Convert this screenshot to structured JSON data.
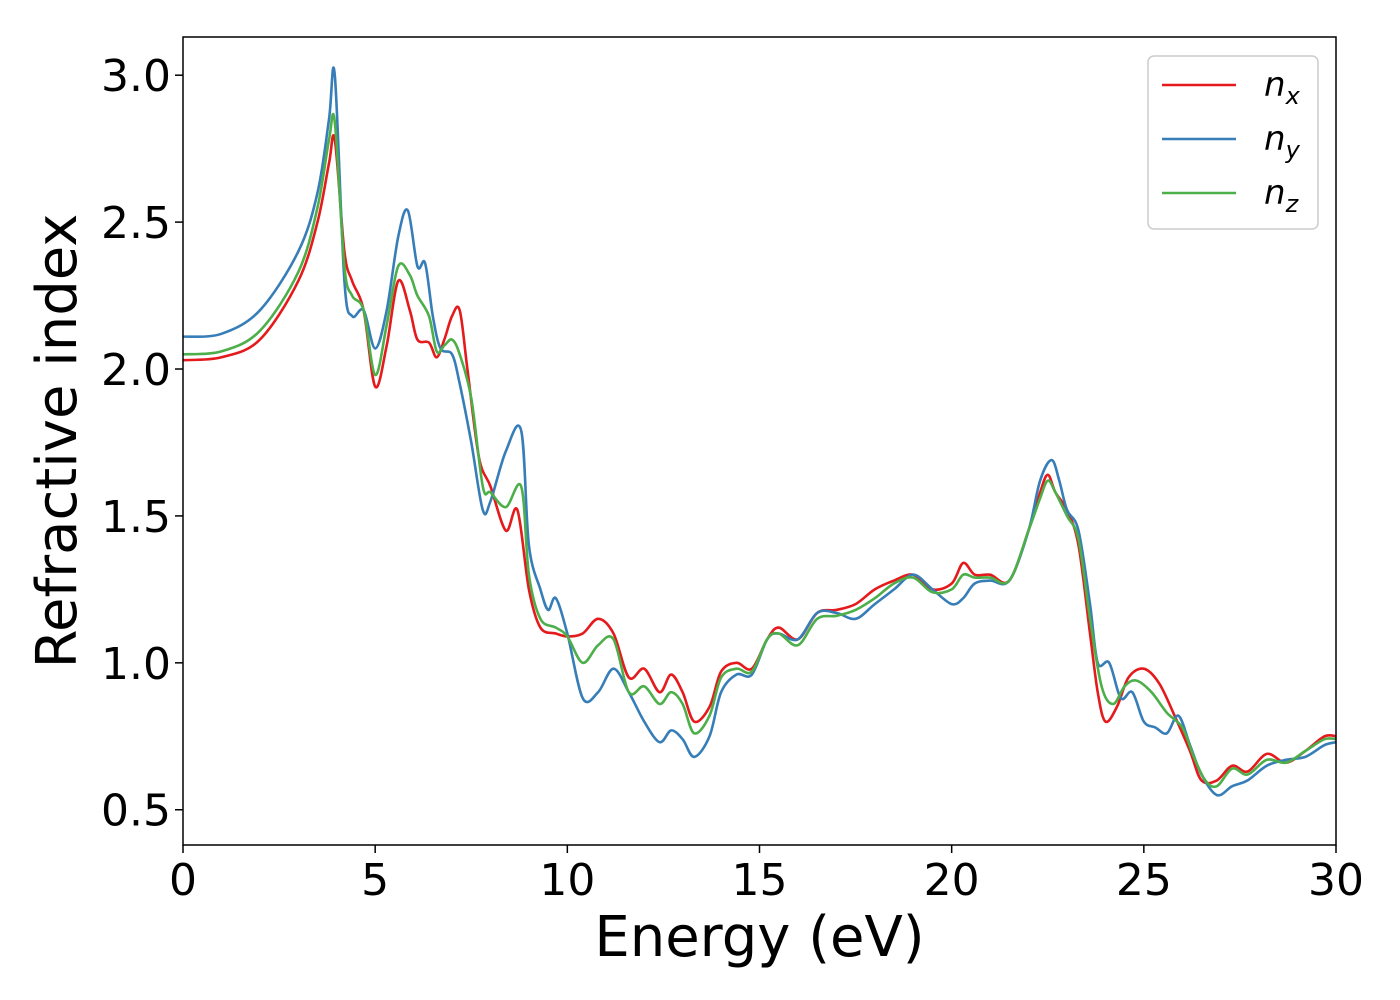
{
  "chart_data": {
    "type": "line",
    "xlabel": "Energy (eV)",
    "ylabel": "Refractive index",
    "xlim": [
      0,
      30
    ],
    "ylim": [
      0.38,
      3.13
    ],
    "xticks": [
      0,
      5,
      10,
      15,
      20,
      25,
      30
    ],
    "xtick_labels": [
      "0",
      "5",
      "10",
      "15",
      "20",
      "25",
      "30"
    ],
    "yticks": [
      0.5,
      1.0,
      1.5,
      2.0,
      2.5,
      3.0
    ],
    "ytick_labels": [
      "0.5",
      "1.0",
      "1.5",
      "2.0",
      "2.5",
      "3.0"
    ],
    "grid": false,
    "legend": {
      "position": "top-right"
    },
    "series": [
      {
        "name": "n_x",
        "label_base": "n",
        "label_sub": "x",
        "color": "#e41a1c",
        "x": [
          0,
          1,
          2,
          3,
          3.5,
          3.8,
          3.95,
          4.2,
          4.4,
          4.7,
          5.0,
          5.3,
          5.6,
          5.9,
          6.1,
          6.4,
          6.6,
          6.8,
          7.0,
          7.2,
          7.4,
          7.7,
          8.0,
          8.4,
          8.7,
          9.0,
          9.3,
          9.7,
          10,
          10.4,
          10.8,
          11.2,
          11.6,
          12,
          12.4,
          12.7,
          13,
          13.3,
          13.7,
          14,
          14.4,
          14.8,
          15.2,
          15.5,
          16,
          16.5,
          17,
          17.5,
          18,
          18.5,
          19,
          19.5,
          20,
          20.3,
          20.6,
          21,
          21.5,
          22,
          22.3,
          22.5,
          22.7,
          23,
          23.3,
          23.6,
          23.8,
          24,
          24.3,
          24.6,
          25,
          25.4,
          25.8,
          26.2,
          26.5,
          26.9,
          27.3,
          27.7,
          28.2,
          28.7,
          29.2,
          29.7,
          30
        ],
        "y": [
          2.03,
          2.04,
          2.1,
          2.3,
          2.5,
          2.7,
          2.78,
          2.4,
          2.3,
          2.2,
          1.94,
          2.08,
          2.3,
          2.2,
          2.1,
          2.09,
          2.04,
          2.1,
          2.18,
          2.2,
          2.0,
          1.7,
          1.6,
          1.45,
          1.52,
          1.25,
          1.12,
          1.1,
          1.09,
          1.1,
          1.15,
          1.1,
          0.95,
          0.98,
          0.9,
          0.96,
          0.9,
          0.8,
          0.85,
          0.97,
          1.0,
          0.98,
          1.08,
          1.12,
          1.08,
          1.17,
          1.18,
          1.2,
          1.25,
          1.28,
          1.3,
          1.25,
          1.27,
          1.34,
          1.3,
          1.3,
          1.28,
          1.45,
          1.58,
          1.64,
          1.58,
          1.52,
          1.4,
          1.1,
          0.9,
          0.8,
          0.85,
          0.95,
          0.98,
          0.93,
          0.82,
          0.7,
          0.6,
          0.6,
          0.65,
          0.63,
          0.69,
          0.66,
          0.7,
          0.75,
          0.75
        ]
      },
      {
        "name": "n_y",
        "label_base": "n",
        "label_sub": "y",
        "color": "#377eb8",
        "x": [
          0,
          1,
          2,
          3,
          3.5,
          3.8,
          3.95,
          4.2,
          4.4,
          4.7,
          5.0,
          5.3,
          5.6,
          5.85,
          6.1,
          6.3,
          6.5,
          6.7,
          7.0,
          7.2,
          7.5,
          7.8,
          8.0,
          8.4,
          8.8,
          9.0,
          9.3,
          9.5,
          9.7,
          10,
          10.4,
          10.8,
          11.2,
          11.6,
          12,
          12.4,
          12.7,
          13,
          13.3,
          13.7,
          14,
          14.4,
          14.8,
          15.2,
          15.5,
          16,
          16.5,
          17,
          17.5,
          18,
          18.5,
          19,
          19.5,
          20,
          20.3,
          20.6,
          21,
          21.5,
          22,
          22.3,
          22.6,
          22.8,
          23,
          23.3,
          23.6,
          23.8,
          24.1,
          24.4,
          24.7,
          25,
          25.3,
          25.6,
          25.9,
          26.2,
          26.5,
          26.9,
          27.3,
          27.7,
          28.2,
          28.7,
          29.2,
          29.7,
          30
        ],
        "y": [
          2.11,
          2.12,
          2.2,
          2.4,
          2.6,
          2.85,
          3.0,
          2.3,
          2.18,
          2.2,
          2.07,
          2.2,
          2.45,
          2.54,
          2.35,
          2.36,
          2.18,
          2.07,
          2.05,
          1.95,
          1.75,
          1.52,
          1.55,
          1.72,
          1.79,
          1.4,
          1.25,
          1.18,
          1.22,
          1.1,
          0.88,
          0.9,
          0.98,
          0.9,
          0.8,
          0.73,
          0.77,
          0.74,
          0.68,
          0.75,
          0.9,
          0.96,
          0.96,
          1.08,
          1.1,
          1.08,
          1.17,
          1.17,
          1.15,
          1.2,
          1.25,
          1.3,
          1.25,
          1.2,
          1.22,
          1.27,
          1.28,
          1.28,
          1.45,
          1.62,
          1.69,
          1.62,
          1.52,
          1.45,
          1.2,
          1.0,
          1.0,
          0.88,
          0.9,
          0.8,
          0.78,
          0.76,
          0.82,
          0.72,
          0.62,
          0.55,
          0.58,
          0.6,
          0.65,
          0.67,
          0.68,
          0.72,
          0.73
        ]
      },
      {
        "name": "n_z",
        "label_base": "n",
        "label_sub": "z",
        "color": "#4daf4a",
        "x": [
          0,
          1,
          2,
          3,
          3.5,
          3.8,
          3.95,
          4.2,
          4.4,
          4.7,
          5.0,
          5.3,
          5.6,
          5.9,
          6.1,
          6.4,
          6.6,
          6.8,
          7.0,
          7.2,
          7.5,
          7.8,
          8.0,
          8.4,
          8.8,
          9.0,
          9.3,
          9.7,
          10,
          10.4,
          10.8,
          11.2,
          11.6,
          12,
          12.4,
          12.7,
          13,
          13.3,
          13.7,
          14,
          14.4,
          14.8,
          15.2,
          15.5,
          16,
          16.5,
          17,
          17.5,
          18,
          18.5,
          19,
          19.5,
          20,
          20.3,
          20.6,
          21,
          21.5,
          22,
          22.3,
          22.5,
          22.7,
          23,
          23.3,
          23.6,
          23.9,
          24.2,
          24.5,
          24.8,
          25.2,
          25.6,
          26,
          26.3,
          26.6,
          26.9,
          27.3,
          27.7,
          28.2,
          28.7,
          29.2,
          29.7,
          30
        ],
        "y": [
          2.05,
          2.06,
          2.13,
          2.33,
          2.55,
          2.78,
          2.84,
          2.35,
          2.25,
          2.2,
          1.98,
          2.15,
          2.35,
          2.32,
          2.25,
          2.18,
          2.06,
          2.08,
          2.1,
          2.05,
          1.9,
          1.6,
          1.58,
          1.53,
          1.6,
          1.3,
          1.15,
          1.12,
          1.09,
          1.0,
          1.06,
          1.08,
          0.9,
          0.92,
          0.86,
          0.9,
          0.86,
          0.76,
          0.82,
          0.95,
          0.98,
          0.97,
          1.08,
          1.1,
          1.06,
          1.15,
          1.16,
          1.18,
          1.22,
          1.27,
          1.29,
          1.24,
          1.25,
          1.3,
          1.29,
          1.29,
          1.28,
          1.45,
          1.56,
          1.62,
          1.58,
          1.5,
          1.42,
          1.15,
          0.92,
          0.86,
          0.92,
          0.94,
          0.9,
          0.83,
          0.78,
          0.68,
          0.6,
          0.58,
          0.64,
          0.62,
          0.67,
          0.66,
          0.7,
          0.74,
          0.74
        ]
      }
    ]
  }
}
